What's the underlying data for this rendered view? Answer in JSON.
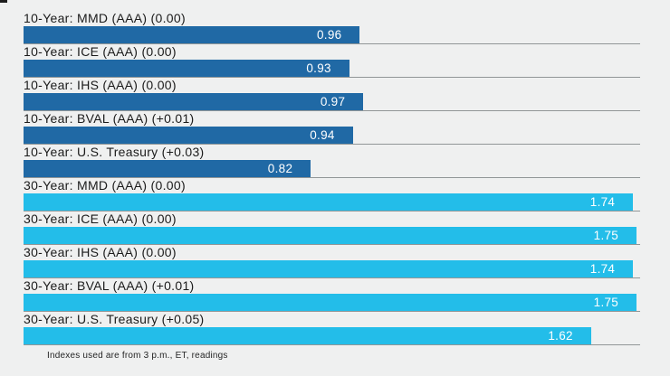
{
  "colors": {
    "background": "#EFF0F0",
    "bar_10_year": "#2069A5",
    "bar_30_year": "#23BDE9",
    "separator_line": "#919697",
    "label_text": "#1B1B1B",
    "value_text": "#FFFFFF"
  },
  "chart_data": {
    "type": "bar",
    "orientation": "horizontal",
    "title": "",
    "xlabel": "",
    "ylabel": "",
    "xlim": [
      0,
      1.76
    ],
    "legend": "none",
    "grid": "row-baselines-only",
    "categories": [
      "10-Year: MMD (AAA) (0.00)",
      "10-Year: ICE (AAA) (0.00)",
      "10-Year: IHS (AAA) (0.00)",
      "10-Year: BVAL (AAA) (+0.01)",
      "10-Year: U.S. Treasury (+0.03)",
      "30-Year: MMD (AAA) (0.00)",
      "30-Year: ICE (AAA) (0.00)",
      "30-Year: IHS (AAA) (0.00)",
      "30-Year: BVAL (AAA) (+0.01)",
      "30-Year: U.S. Treasury (+0.05)"
    ],
    "values": [
      0.96,
      0.93,
      0.97,
      0.94,
      0.82,
      1.74,
      1.75,
      1.74,
      1.75,
      1.62
    ],
    "rows": [
      {
        "label": "10-Year: MMD (AAA) (0.00)",
        "value": 0.96,
        "value_label": "0.96",
        "group": "10_year"
      },
      {
        "label": "10-Year: ICE (AAA) (0.00)",
        "value": 0.93,
        "value_label": "0.93",
        "group": "10_year"
      },
      {
        "label": "10-Year: IHS (AAA) (0.00)",
        "value": 0.97,
        "value_label": "0.97",
        "group": "10_year"
      },
      {
        "label": "10-Year: BVAL (AAA) (+0.01)",
        "value": 0.94,
        "value_label": "0.94",
        "group": "10_year"
      },
      {
        "label": "10-Year: U.S. Treasury (+0.03)",
        "value": 0.82,
        "value_label": "0.82",
        "group": "10_year"
      },
      {
        "label": "30-Year: MMD (AAA) (0.00)",
        "value": 1.74,
        "value_label": "1.74",
        "group": "30_year"
      },
      {
        "label": "30-Year: ICE (AAA) (0.00)",
        "value": 1.75,
        "value_label": "1.75",
        "group": "30_year"
      },
      {
        "label": "30-Year: IHS (AAA) (0.00)",
        "value": 1.74,
        "value_label": "1.74",
        "group": "30_year"
      },
      {
        "label": "30-Year: BVAL (AAA) (+0.01)",
        "value": 1.75,
        "value_label": "1.75",
        "group": "30_year"
      },
      {
        "label": "30-Year: U.S. Treasury (+0.05)",
        "value": 1.62,
        "value_label": "1.62",
        "group": "30_year"
      }
    ]
  },
  "footnote": "Indexes used are from 3 p.m., ET, readings"
}
